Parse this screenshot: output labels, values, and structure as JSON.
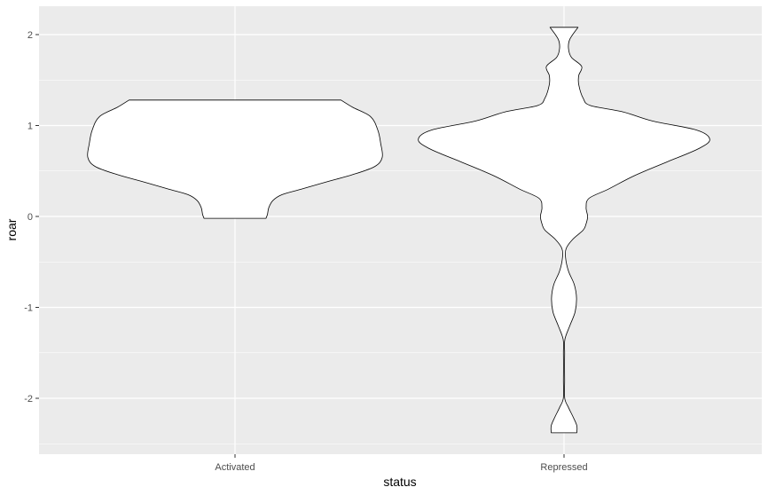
{
  "chart_data": {
    "type": "violin",
    "xlabel": "status",
    "ylabel": "roar",
    "categories": [
      "Activated",
      "Repressed"
    ],
    "yticks": [
      -2,
      -1,
      0,
      1,
      2
    ],
    "ylim": [
      -2.6,
      2.3
    ],
    "grid": true,
    "legend": "none",
    "colors": {
      "panel": "#ebebeb",
      "grid_major": "#ffffff",
      "fill": "#ffffff",
      "outline": "#000000"
    },
    "violins": [
      {
        "category": "Activated",
        "ymin": -0.02,
        "ymax": 1.28,
        "density": [
          [
            -0.02,
            0.21
          ],
          [
            0.02,
            0.22
          ],
          [
            0.1,
            0.23
          ],
          [
            0.18,
            0.26
          ],
          [
            0.24,
            0.32
          ],
          [
            0.3,
            0.45
          ],
          [
            0.38,
            0.62
          ],
          [
            0.46,
            0.8
          ],
          [
            0.55,
            0.95
          ],
          [
            0.65,
            1.0
          ],
          [
            0.8,
            0.99
          ],
          [
            0.95,
            0.97
          ],
          [
            1.1,
            0.92
          ],
          [
            1.2,
            0.8
          ],
          [
            1.28,
            0.72
          ]
        ]
      },
      {
        "category": "Repressed",
        "ymin": -2.38,
        "ymax": 2.08,
        "density": [
          [
            -2.38,
            0.087
          ],
          [
            -2.3,
            0.087
          ],
          [
            -2.2,
            0.06
          ],
          [
            -2.1,
            0.03
          ],
          [
            -2.0,
            0.005
          ],
          [
            -1.8,
            0.004
          ],
          [
            -1.5,
            0.004
          ],
          [
            -1.35,
            0.006
          ],
          [
            -1.2,
            0.04
          ],
          [
            -1.05,
            0.075
          ],
          [
            -0.9,
            0.085
          ],
          [
            -0.75,
            0.07
          ],
          [
            -0.6,
            0.03
          ],
          [
            -0.45,
            0.01
          ],
          [
            -0.35,
            0.015
          ],
          [
            -0.25,
            0.06
          ],
          [
            -0.15,
            0.13
          ],
          [
            -0.08,
            0.15
          ],
          [
            0.0,
            0.16
          ],
          [
            0.1,
            0.15
          ],
          [
            0.2,
            0.17
          ],
          [
            0.3,
            0.3
          ],
          [
            0.45,
            0.48
          ],
          [
            0.6,
            0.7
          ],
          [
            0.75,
            0.92
          ],
          [
            0.85,
            0.99
          ],
          [
            0.95,
            0.9
          ],
          [
            1.05,
            0.6
          ],
          [
            1.15,
            0.4
          ],
          [
            1.22,
            0.18
          ],
          [
            1.3,
            0.13
          ],
          [
            1.45,
            0.1
          ],
          [
            1.55,
            0.1
          ],
          [
            1.65,
            0.12
          ],
          [
            1.75,
            0.05
          ],
          [
            1.85,
            0.03
          ],
          [
            1.95,
            0.04
          ],
          [
            2.08,
            0.095
          ]
        ]
      }
    ]
  }
}
